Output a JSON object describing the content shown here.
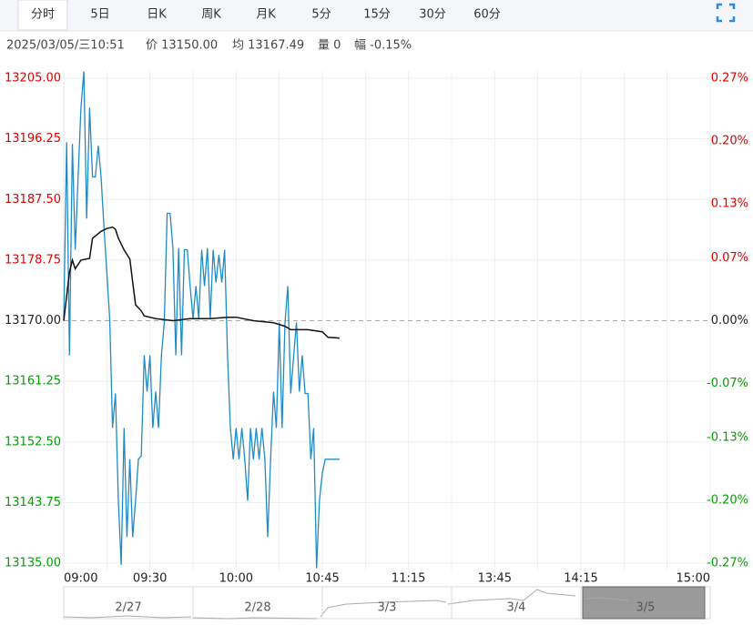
{
  "tabs": [
    "分时",
    "5日",
    "日K",
    "周K",
    "月K",
    "5分",
    "15分",
    "30分",
    "60分"
  ],
  "info": [
    "2025/03/05/三10:51",
    "价 13150.00",
    "均 13167.49",
    "量 0",
    "幅 -0.15%"
  ],
  "navigator": [
    "2/27",
    "2/28",
    "3/3",
    "3/4",
    "3/5"
  ],
  "chart_data": {
    "type": "line",
    "base": 13170,
    "up_color": "#e00000",
    "down_color": "#00a000",
    "flat_color": "#222222",
    "xlim": [
      0,
      225
    ],
    "xticks": [
      {
        "value": 0,
        "label": "09:00"
      },
      {
        "value": 30,
        "label": "09:30"
      },
      {
        "value": 60,
        "label": "10:00"
      },
      {
        "value": 90,
        "label": "10:45"
      },
      {
        "value": 120,
        "label": "11:15"
      },
      {
        "value": 150,
        "label": "13:45"
      },
      {
        "value": 180,
        "label": "14:15"
      },
      {
        "value": 225,
        "label": "15:00"
      }
    ],
    "ylim": [
      13135,
      13205
    ],
    "yticks": [
      {
        "value": 13135,
        "label": "13135.00"
      },
      {
        "value": 13143.75,
        "label": "13143.75"
      },
      {
        "value": 13152.5,
        "label": "13152.50"
      },
      {
        "value": 13161.25,
        "label": "13161.25"
      },
      {
        "value": 13170,
        "label": "13170.00"
      },
      {
        "value": 13178.75,
        "label": "13178.75"
      },
      {
        "value": 13187.5,
        "label": "13187.50"
      },
      {
        "value": 13196.25,
        "label": "13196.25"
      },
      {
        "value": 13205,
        "label": "13205.00"
      }
    ],
    "y2lim": [
      -0.27,
      0.27
    ],
    "y2ticks": [
      {
        "value": -0.27,
        "label": "-0.27%"
      },
      {
        "value": -0.2,
        "label": "-0.20%"
      },
      {
        "value": -0.13,
        "label": "-0.13%"
      },
      {
        "value": -0.07,
        "label": "-0.07%"
      },
      {
        "value": 0,
        "label": "0.00%"
      },
      {
        "value": 0.07,
        "label": "0.07%"
      },
      {
        "value": 0.13,
        "label": "0.13%"
      },
      {
        "value": 0.2,
        "label": "0.20%"
      },
      {
        "value": 0.27,
        "label": "0.27%"
      }
    ],
    "grid": true,
    "series": [
      {
        "color": "#1f8bc6",
        "x": [
          0,
          1,
          2,
          3,
          4,
          5,
          6,
          7,
          8,
          9,
          10,
          11,
          12,
          13,
          14,
          15,
          16,
          17,
          18,
          19,
          20,
          21,
          22,
          23,
          24,
          25,
          26,
          27,
          28,
          29,
          30,
          31,
          32,
          33,
          34,
          35,
          36,
          37,
          38,
          39,
          40,
          41,
          42,
          43,
          44,
          45,
          46,
          47,
          48,
          49,
          50,
          51,
          52,
          53,
          54,
          55,
          56,
          57,
          58,
          59,
          60,
          61,
          62,
          63,
          64,
          65,
          66,
          67,
          68,
          69,
          70,
          71,
          72,
          73,
          74,
          75,
          76,
          77,
          78,
          79,
          80,
          81,
          82,
          83,
          84,
          85,
          86,
          87,
          88,
          89,
          90,
          91,
          92,
          93,
          94,
          95,
          96
        ],
        "values": [
          13170,
          13195.75,
          13165,
          13195.5,
          13180.25,
          13190.75,
          13200.75,
          13206,
          13184.75,
          13200.75,
          13190.75,
          13190.75,
          13195.25,
          13190.75,
          13183.5,
          13177,
          13170.25,
          13154.5,
          13159.5,
          13144,
          13134.75,
          13154.5,
          13138.75,
          13150,
          13138.75,
          13144,
          13150,
          13150.5,
          13165,
          13159.75,
          13165,
          13154.5,
          13159.75,
          13154.5,
          13165,
          13169.75,
          13185.5,
          13185.5,
          13180.5,
          13165,
          13180.5,
          13165,
          13180.25,
          13180.25,
          13175,
          13170.25,
          13175,
          13170.25,
          13180.25,
          13175,
          13180.5,
          13170.25,
          13180.25,
          13175.5,
          13179.5,
          13175.5,
          13180.25,
          13165,
          13154.5,
          13150,
          13154.5,
          13150,
          13154.5,
          13150,
          13144,
          13154.5,
          13150,
          13154.5,
          13150,
          13154.5,
          13150,
          13138.75,
          13150,
          13159.75,
          13154.5,
          13169.75,
          13154.5,
          13169.75,
          13175,
          13159.5,
          13164.75,
          13169.75,
          13159.75,
          13165,
          13159.5,
          13159.5,
          13150,
          13154.5,
          13134.25,
          13144,
          13148,
          13150,
          13150,
          13150,
          13150,
          13150,
          13150
        ]
      },
      {
        "color": "#111111",
        "x": [
          0,
          2,
          3,
          4,
          6,
          9,
          10,
          13,
          15,
          17,
          18,
          19,
          21,
          23,
          24,
          25,
          27,
          28,
          32,
          38,
          44,
          51,
          57,
          60,
          66,
          73,
          77,
          79,
          85,
          90,
          92,
          96
        ],
        "values": [
          13170,
          13177,
          13178.75,
          13177.5,
          13178.75,
          13179,
          13181.9,
          13182.9,
          13183.3,
          13183.5,
          13183.2,
          13181.9,
          13180.2,
          13178.9,
          13175.6,
          13172.3,
          13171.4,
          13170.7,
          13170.3,
          13170,
          13170.3,
          13170.3,
          13170.5,
          13170.5,
          13170,
          13169.7,
          13169.2,
          13168.7,
          13168.7,
          13168.4,
          13167.6,
          13167.49
        ]
      }
    ]
  }
}
